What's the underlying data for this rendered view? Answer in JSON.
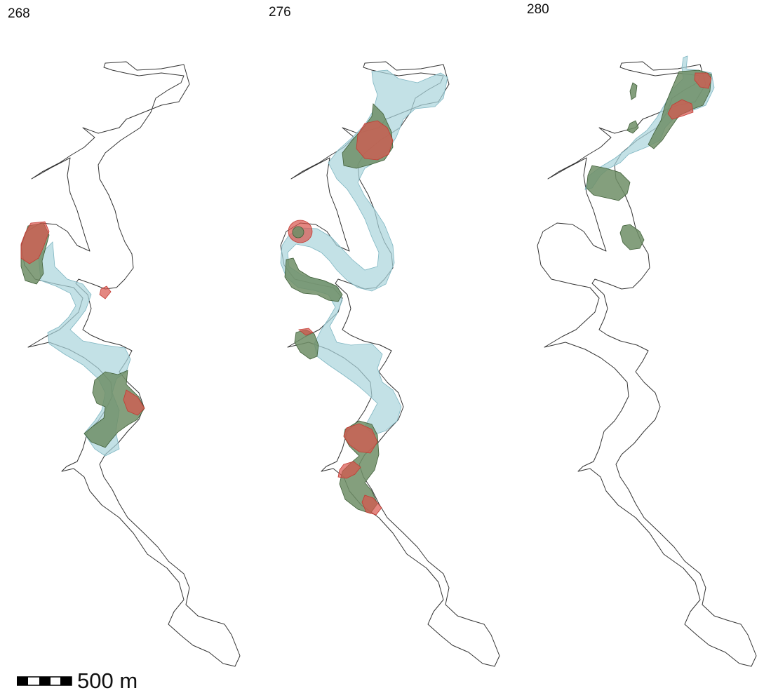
{
  "panels": [
    {
      "label": "268"
    },
    {
      "label": "276"
    },
    {
      "label": "280"
    }
  ],
  "scale_bar": {
    "label": "500 m"
  },
  "colors": {
    "channel_outline": "#333333",
    "blue_area": "#a9d4dc",
    "green_area": "#6f8e66",
    "red_area": "#d9544c"
  }
}
